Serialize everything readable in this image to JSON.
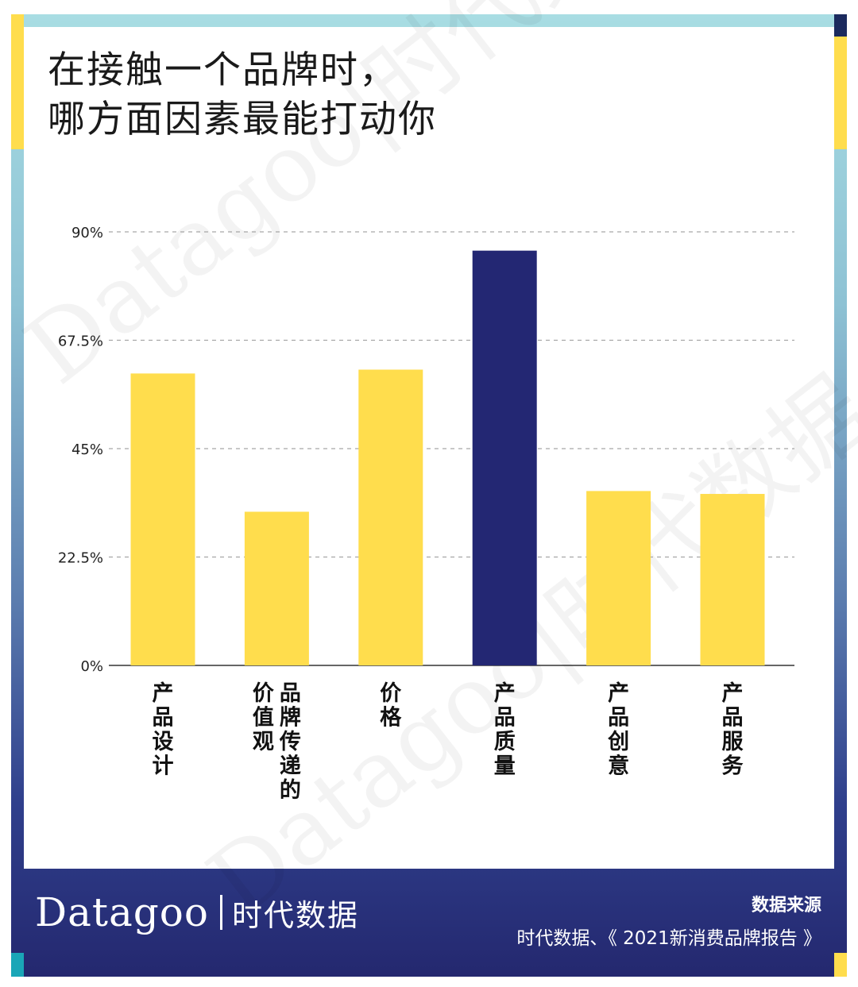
{
  "title_lines": [
    "在接触一个品牌时，",
    "哪方面因素最能打动你"
  ],
  "watermark": "Datagoo|时代数据",
  "colors": {
    "highlight": "#232773",
    "normal": "#ffdd4d",
    "grid": "#a6a6a6",
    "yellow_accent": "#ffdd4d",
    "navy_accent": "#1b2a5e",
    "teal_accent": "#1aa6b7"
  },
  "chart_data": {
    "type": "bar",
    "categories": [
      "产品设计",
      "品牌传递的价值观",
      "价格",
      "产品质量",
      "产品创意",
      "产品服务"
    ],
    "category_lines": [
      [
        "产品设计"
      ],
      [
        "价值观",
        "品牌传递的"
      ],
      [
        "价格"
      ],
      [
        "产品质量"
      ],
      [
        "产品创意"
      ],
      [
        "产品服务"
      ]
    ],
    "values": [
      60.6,
      31.9,
      61.4,
      86.1,
      36.2,
      35.6
    ],
    "highlight_index": 3,
    "yticks": [
      0,
      22.5,
      45,
      67.5,
      90
    ],
    "ytick_labels": [
      "0%",
      "22.5%",
      "45%",
      "67.5%",
      "90%"
    ],
    "ylim": [
      0,
      90
    ],
    "grid": true
  },
  "footer": {
    "logo_en": "Datagoo",
    "logo_cn": "时代数据",
    "source_title": "数据来源",
    "source_text": "时代数据、《 2021新消费品牌报告 》"
  }
}
